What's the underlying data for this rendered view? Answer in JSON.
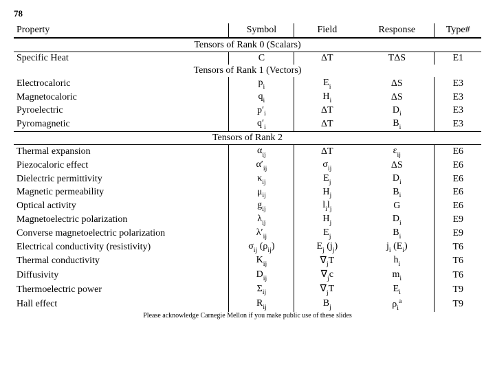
{
  "page_number": "78",
  "footer": "Please acknowledge Carnegie Mellon if you make public use of these slides",
  "headers": {
    "property": "Property",
    "symbol": "Symbol",
    "field": "Field",
    "response": "Response",
    "type": "Type#"
  },
  "sections": [
    {
      "title": "Tensors of Rank 0 (Scalars)",
      "rows": [
        {
          "property": "Specific Heat",
          "symbol": "C",
          "field": "ΔT",
          "response": "TΔS",
          "type": "E1"
        }
      ]
    },
    {
      "title": "Tensors of Rank 1 (Vectors)",
      "rows": [
        {
          "property": "Electrocaloric",
          "symbol": "p<span class='sub'>i</span>",
          "field": "E<span class='sub'>i</span>",
          "response": "ΔS",
          "type": "E3"
        },
        {
          "property": "Magnetocaloric",
          "symbol": "q<span class='sub'>i</span>",
          "field": "H<span class='sub'>i</span>",
          "response": "ΔS",
          "type": "E3"
        },
        {
          "property": "Pyroelectric",
          "symbol": "p′<span class='sub'>i</span>",
          "field": "ΔT",
          "response": "D<span class='sub'>i</span>",
          "type": "E3"
        },
        {
          "property": "Pyromagnetic",
          "symbol": "q′<span class='sub'>i</span>",
          "field": "ΔT",
          "response": "B<span class='sub'>i</span>",
          "type": "E3"
        }
      ]
    },
    {
      "title": "Tensors of Rank 2",
      "rows": [
        {
          "property": "Thermal expansion",
          "symbol": "α<span class='sub'>ij</span>",
          "field": "ΔT",
          "response": "ε<span class='sub'>ij</span>",
          "type": "E6"
        },
        {
          "property": "Piezocaloric effect",
          "symbol": "α′<span class='sub'>ij</span>",
          "field": "σ<span class='sub'>ij</span>",
          "response": "ΔS",
          "type": "E6"
        },
        {
          "property": "Dielectric permittivity",
          "symbol": "κ<span class='sub'>ij</span>",
          "field": "E<span class='sub'>j</span>",
          "response": "D<span class='sub'>i</span>",
          "type": "E6"
        },
        {
          "property": "Magnetic permeability",
          "symbol": "μ<span class='sub'>ij</span>",
          "field": "H<span class='sub'>j</span>",
          "response": "B<span class='sub'>i</span>",
          "type": "E6"
        },
        {
          "property": "Optical activity",
          "symbol": "g<span class='sub'>ij</span>",
          "field": "l<span class='sub'>i</span>l<span class='sub'>j</span>",
          "response": "G",
          "type": "E6"
        },
        {
          "property": "Magnetoelectric polarization",
          "symbol": "λ<span class='sub'>ij</span>",
          "field": "H<span class='sub'>j</span>",
          "response": "D<span class='sub'>i</span>",
          "type": "E9"
        },
        {
          "property": "Converse magnetoelectric polarization",
          "symbol": "λ′<span class='sub'>ij</span>",
          "field": "E<span class='sub'>j</span>",
          "response": "B<span class='sub'>i</span>",
          "type": "E9"
        },
        {
          "property": "Electrical conductivity (resistivity)",
          "symbol": "σ<span class='sub'>ij</span> (ρ<span class='sub'>ij</span>)",
          "field": "E<span class='sub'>j</span> (j<span class='sub'>j</span>)",
          "response": "j<span class='sub'>i</span> (E<span class='sub'>i</span>)",
          "type": "T6"
        },
        {
          "property": "Thermal conductivity",
          "symbol": "K<span class='sub'>ij</span>",
          "field": "∇<span class='sub'>j</span>T",
          "response": "h<span class='sub'>i</span>",
          "type": "T6"
        },
        {
          "property": "Diffusivity",
          "symbol": "D<span class='sub'>ij</span>",
          "field": "∇<span class='sub'>j</span>c",
          "response": "m<span class='sub'>i</span>",
          "type": "T6"
        },
        {
          "property": "Thermoelectric power",
          "symbol": "Σ<span class='sub'>ij</span>",
          "field": "∇<span class='sub'>j</span>T",
          "response": "E<span class='sub'>i</span>",
          "type": "T9"
        },
        {
          "property": "Hall effect",
          "symbol": "R<span class='sub'>ij</span>",
          "field": "B<span class='sub'>j</span>",
          "response": "ρ<span class='sub'>i</span><span class='sup'>a</span>",
          "type": "T9"
        }
      ]
    }
  ],
  "style": {
    "font_family": "Times New Roman",
    "font_size_pt": 14,
    "background": "#ffffff",
    "text_color": "#000000",
    "border_color": "#000000"
  }
}
